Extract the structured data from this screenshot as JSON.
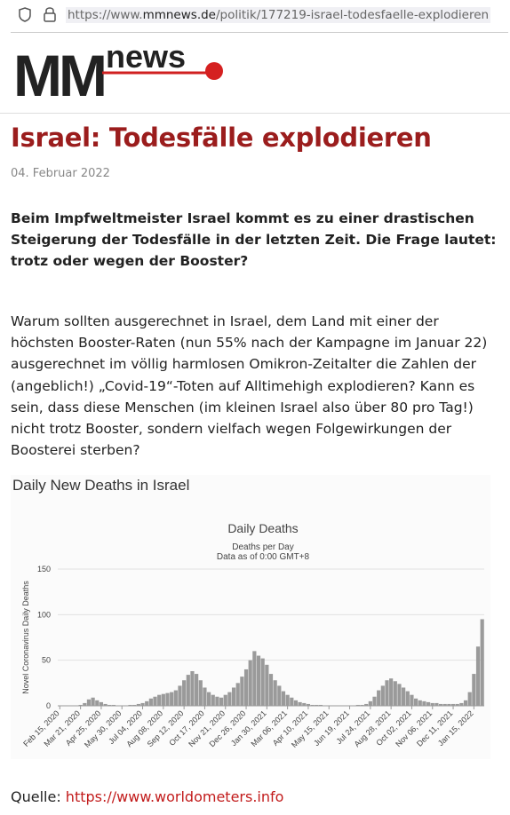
{
  "url": {
    "prefix": "https://www.",
    "domain": "mmnews.de",
    "path": "/politik/177219-israel-todesfaelle-explodieren"
  },
  "logo": {
    "main": "MM",
    "sub": "news"
  },
  "article": {
    "title": "Israel: Todesfälle explodieren",
    "date": "04. Februar 2022",
    "lead": "Beim Impfweltmeister Israel kommt es zu einer drastischen Steigerung der Todesfälle in der letzten Zeit. Die Frage lautet: trotz oder wegen der Booster?",
    "body": "Warum sollten ausgerechnet in Israel, dem Land mit einer der höchsten Booster-Raten (nun 55% nach der Kampagne im Januar 22) ausgerechnet im völlig harmlosen Omikron-Zeitalter die Zahlen der (angeblich!) „Covid-19“-Toten auf Alltimehigh explodieren? Kann es sein, dass diese Menschen (im kleinen Israel also über 80 pro Tag!) nicht trotz Booster, sondern vielfach wegen Folgewirkungen der Boosterei sterben?",
    "figure_caption": "Daily New Deaths in Israel"
  },
  "chart_data": {
    "type": "bar",
    "title": "Daily Deaths",
    "subtitle": "Deaths per Day",
    "note": "Data as of 0:00 GMT+8",
    "y_label": "Novel Coronavirus Daily Deaths",
    "color": "#9a9a9a",
    "grid": true,
    "ylim": [
      0,
      150
    ],
    "yticks": [
      0,
      50,
      100,
      150
    ],
    "categories": [
      "Feb 15, 2020",
      null,
      null,
      null,
      null,
      "Mar 21, 2020",
      null,
      null,
      null,
      null,
      "Apr 25, 2020",
      null,
      null,
      null,
      null,
      "May 30, 2020",
      null,
      null,
      null,
      null,
      "Jul 04, 2020",
      null,
      null,
      null,
      null,
      "Aug 08, 2020",
      null,
      null,
      null,
      null,
      "Sep 12, 2020",
      null,
      null,
      null,
      null,
      "Oct 17, 2020",
      null,
      null,
      null,
      null,
      "Nov 21, 2020",
      null,
      null,
      null,
      null,
      "Dec 26, 2020",
      null,
      null,
      null,
      null,
      "Jan 30, 2021",
      null,
      null,
      null,
      null,
      "Mar 06, 2021",
      null,
      null,
      null,
      null,
      "Apr 10, 2021",
      null,
      null,
      null,
      null,
      "May 15, 2021",
      null,
      null,
      null,
      null,
      "Jun 19, 2021",
      null,
      null,
      null,
      null,
      "Jul 24, 2021",
      null,
      null,
      null,
      null,
      "Aug 28, 2021",
      null,
      null,
      null,
      null,
      "Oct 02, 2021",
      null,
      null,
      null,
      null,
      "Nov 06, 2021",
      null,
      null,
      null,
      null,
      "Dec 11, 2021",
      null,
      null,
      null,
      null,
      "Jan 15, 2022",
      null,
      null
    ],
    "values": [
      0,
      0,
      0,
      0,
      0,
      1,
      3,
      7,
      9,
      6,
      4,
      2,
      1,
      1,
      0,
      0,
      0,
      1,
      1,
      2,
      3,
      5,
      8,
      10,
      12,
      13,
      14,
      15,
      17,
      22,
      28,
      34,
      38,
      35,
      28,
      20,
      15,
      12,
      10,
      9,
      12,
      15,
      20,
      25,
      32,
      40,
      50,
      60,
      55,
      52,
      45,
      35,
      28,
      22,
      16,
      12,
      9,
      6,
      4,
      3,
      2,
      1,
      1,
      1,
      0,
      0,
      0,
      0,
      0,
      0,
      0,
      0,
      1,
      1,
      2,
      5,
      10,
      17,
      22,
      28,
      30,
      27,
      24,
      20,
      16,
      12,
      8,
      6,
      5,
      4,
      3,
      3,
      2,
      2,
      2,
      2,
      2,
      3,
      6,
      15,
      35,
      65,
      95
    ]
  },
  "source": {
    "label": "Quelle:",
    "link": "https://www.worldometers.info"
  }
}
